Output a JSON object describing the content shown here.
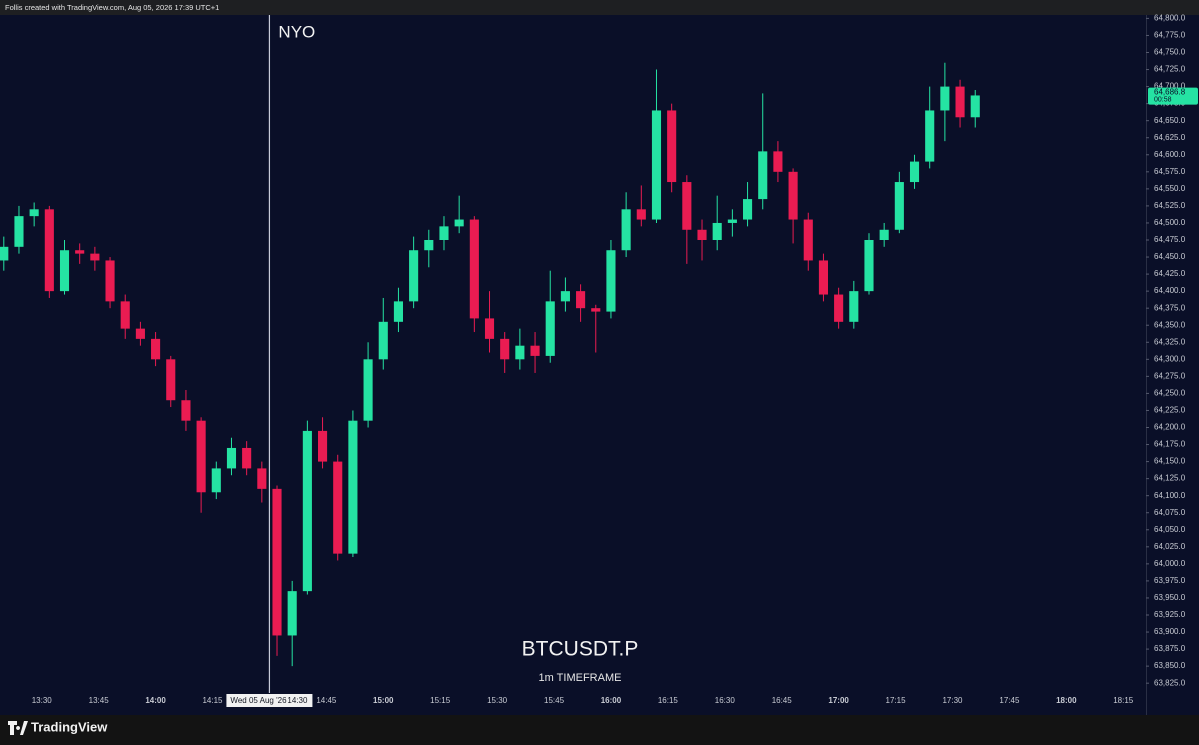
{
  "header": "Follis created with TradingView.com, Aug 05, 2026 17:39 UTC+1",
  "brand": "TradingView",
  "chart_data": {
    "type": "candlestick",
    "title": "BTCUSDT.P",
    "subtitle": "1m TIMEFRAME",
    "x": [
      "13:20",
      "13:24",
      "13:28",
      "13:32",
      "13:36",
      "13:40",
      "13:44",
      "13:48",
      "13:52",
      "13:56",
      "14:00",
      "14:04",
      "14:08",
      "14:12",
      "14:16",
      "14:20",
      "14:24",
      "14:28",
      "14:32",
      "14:36",
      "14:40",
      "14:44",
      "14:48",
      "14:52",
      "14:56",
      "15:00",
      "15:04",
      "15:08",
      "15:12",
      "15:16",
      "15:20",
      "15:24",
      "15:28",
      "15:32",
      "15:36",
      "15:40",
      "15:44",
      "15:48",
      "15:52",
      "15:56",
      "16:00",
      "16:04",
      "16:08",
      "16:12",
      "16:16",
      "16:20",
      "16:24",
      "16:28",
      "16:32",
      "16:36",
      "16:40",
      "16:44",
      "16:48",
      "16:52",
      "16:56",
      "17:00",
      "17:04",
      "17:08",
      "17:12",
      "17:16",
      "17:20",
      "17:24",
      "17:28",
      "17:32",
      "17:36"
    ],
    "open": [
      64445,
      64465,
      64510,
      64520,
      64400,
      64460,
      64455,
      64445,
      64385,
      64345,
      64330,
      64300,
      64240,
      64210,
      64105,
      64140,
      64170,
      64140,
      64110,
      63895,
      63960,
      64195,
      64150,
      64015,
      64210,
      64300,
      64355,
      64385,
      64460,
      64475,
      64495,
      64505,
      64360,
      64330,
      64300,
      64320,
      64305,
      64385,
      64400,
      64375,
      64370,
      64460,
      64520,
      64505,
      64665,
      64560,
      64490,
      64475,
      64500,
      64505,
      64535,
      64605,
      64575,
      64505,
      64445,
      64395,
      64355,
      64400,
      64475,
      64490,
      64560,
      64590,
      64665,
      64700,
      64655
    ],
    "high": [
      64480,
      64525,
      64530,
      64525,
      64475,
      64470,
      64465,
      64450,
      64395,
      64355,
      64340,
      64305,
      64255,
      64215,
      64150,
      64185,
      64180,
      64150,
      64115,
      63975,
      64210,
      64215,
      64160,
      64225,
      64325,
      64390,
      64405,
      64480,
      64490,
      64510,
      64540,
      64510,
      64400,
      64340,
      64345,
      64340,
      64430,
      64420,
      64410,
      64380,
      64475,
      64545,
      64555,
      64725,
      64675,
      64570,
      64505,
      64540,
      64520,
      64560,
      64690,
      64620,
      64580,
      64515,
      64455,
      64405,
      64415,
      64485,
      64500,
      64575,
      64600,
      64700,
      64735,
      64710,
      64695
    ],
    "low": [
      64430,
      64455,
      64495,
      64390,
      64395,
      64440,
      64430,
      64375,
      64330,
      64320,
      64290,
      64230,
      64195,
      64075,
      64095,
      64130,
      64130,
      64090,
      63865,
      63850,
      63955,
      64140,
      64005,
      64010,
      64200,
      64285,
      64340,
      64375,
      64435,
      64460,
      64485,
      64340,
      64310,
      64280,
      64285,
      64280,
      64295,
      64370,
      64355,
      64310,
      64360,
      64450,
      64495,
      64500,
      64545,
      64440,
      64445,
      64460,
      64480,
      64495,
      64520,
      64560,
      64470,
      64430,
      64385,
      64345,
      64345,
      64395,
      64465,
      64485,
      64550,
      64580,
      64620,
      64640,
      64640
    ],
    "close": [
      64465,
      64510,
      64520,
      64400,
      64460,
      64455,
      64445,
      64385,
      64345,
      64330,
      64300,
      64240,
      64210,
      64105,
      64140,
      64170,
      64140,
      64110,
      63895,
      63960,
      64195,
      64150,
      64015,
      64210,
      64300,
      64355,
      64385,
      64460,
      64475,
      64495,
      64505,
      64360,
      64330,
      64300,
      64320,
      64305,
      64385,
      64400,
      64375,
      64370,
      64460,
      64520,
      64505,
      64665,
      64560,
      64490,
      64475,
      64500,
      64505,
      64535,
      64605,
      64575,
      64505,
      64445,
      64395,
      64355,
      64400,
      64475,
      64490,
      64560,
      64590,
      64665,
      64700,
      64655,
      64687
    ],
    "up_color": "#25e3a3",
    "down_color": "#ea1c52",
    "xlim": [
      "13:19",
      "18:21"
    ],
    "xticks": [
      "13:30",
      "13:45",
      "14:00",
      "14:15",
      "14:45",
      "15:00",
      "15:15",
      "15:30",
      "15:45",
      "16:00",
      "16:15",
      "16:30",
      "16:45",
      "17:00",
      "17:15",
      "17:30",
      "17:45",
      "18:00",
      "18:15"
    ],
    "ylim": [
      63815,
      64805
    ],
    "yticks": [
      {
        "value": 64800,
        "label": "64,800.0"
      },
      {
        "value": 64775,
        "label": "64,775.0"
      },
      {
        "value": 64750,
        "label": "64,750.0"
      },
      {
        "value": 64725,
        "label": "64,725.0"
      },
      {
        "value": 64700,
        "label": "64,700.0"
      },
      {
        "value": 64675,
        "label": "64,675.0"
      },
      {
        "value": 64650,
        "label": "64,650.0"
      },
      {
        "value": 64625,
        "label": "64,625.0"
      },
      {
        "value": 64600,
        "label": "64,600.0"
      },
      {
        "value": 64575,
        "label": "64,575.0"
      },
      {
        "value": 64550,
        "label": "64,550.0"
      },
      {
        "value": 64525,
        "label": "64,525.0"
      },
      {
        "value": 64500,
        "label": "64,500.0"
      },
      {
        "value": 64475,
        "label": "64,475.0"
      },
      {
        "value": 64450,
        "label": "64,450.0"
      },
      {
        "value": 64425,
        "label": "64,425.0"
      },
      {
        "value": 64400,
        "label": "64,400.0"
      },
      {
        "value": 64375,
        "label": "64,375.0"
      },
      {
        "value": 64350,
        "label": "64,350.0"
      },
      {
        "value": 64325,
        "label": "64,325.0"
      },
      {
        "value": 64300,
        "label": "64,300.0"
      },
      {
        "value": 64275,
        "label": "64,275.0"
      },
      {
        "value": 64250,
        "label": "64,250.0"
      },
      {
        "value": 64225,
        "label": "64,225.0"
      },
      {
        "value": 64200,
        "label": "64,200.0"
      },
      {
        "value": 64175,
        "label": "64,175.0"
      },
      {
        "value": 64150,
        "label": "64,150.0"
      },
      {
        "value": 64125,
        "label": "64,125.0"
      },
      {
        "value": 64100,
        "label": "64,100.0"
      },
      {
        "value": 64075,
        "label": "64,075.0"
      },
      {
        "value": 64050,
        "label": "64,050.0"
      },
      {
        "value": 64025,
        "label": "64,025.0"
      },
      {
        "value": 64000,
        "label": "64,000.0"
      },
      {
        "value": 63975,
        "label": "63,975.0"
      },
      {
        "value": 63950,
        "label": "63,950.0"
      },
      {
        "value": 63925,
        "label": "63,925.0"
      },
      {
        "value": 63900,
        "label": "63,900.0"
      },
      {
        "value": 63875,
        "label": "63,875.0"
      },
      {
        "value": 63850,
        "label": "63,850.0"
      },
      {
        "value": 63825,
        "label": "63,825.0"
      }
    ],
    "vline": {
      "x": "14:30",
      "label": "NYO",
      "date": "Wed 05 Aug '26"
    },
    "last_price": {
      "value": 64686.8,
      "label": "64,686.8",
      "countdown": "00:58"
    }
  }
}
